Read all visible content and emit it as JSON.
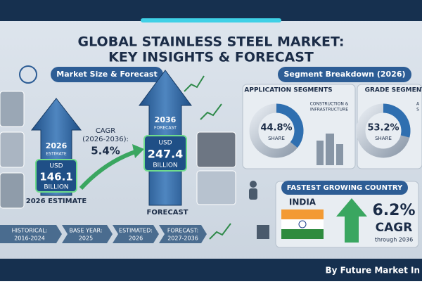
{
  "header": {
    "title_line1": "GLOBAL  STAINLESS STEEL MARKET:",
    "title_line2": "KEY INSIGHTS & FORECAST"
  },
  "market_size": {
    "heading": "Market Size & Forecast",
    "estimate": {
      "year": "2026",
      "tag": "ESTIMATE",
      "currency": "USD",
      "value": "146.1",
      "unit": "BILLION",
      "caption": "2026 ESTIMATE"
    },
    "cagr": {
      "label": "CAGR",
      "period": "(2026-2036):",
      "value": "5.4%"
    },
    "forecast": {
      "year": "2036",
      "tag": "FORECAST",
      "currency": "USD",
      "value": "247.4",
      "unit": "BILLION",
      "caption": "FORECAST"
    }
  },
  "timeline": [
    {
      "label": "HISTORICAL:",
      "years": "2016-2024"
    },
    {
      "label": "BASE YEAR:",
      "years": "2025"
    },
    {
      "label": "ESTIMATED:",
      "years": "2026"
    },
    {
      "label": "FORECAST:",
      "years": "2027-2036"
    }
  ],
  "segments": {
    "heading": "Segment Breakdown (2026)",
    "application": {
      "title": "APPLICATION SEGMENTS",
      "share": "44.8%",
      "share_label": "SHARE",
      "labels": [
        "CONSTRUCTION &",
        "INFRASTRUCTURE"
      ]
    },
    "grade": {
      "title": "GRADE SEGMENT",
      "share": "53.2%",
      "share_label": "SHARE",
      "labels": [
        "A",
        "S"
      ]
    }
  },
  "fastest_growing": {
    "title": "FASTEST GROWING COUNTRY",
    "country": "INDIA",
    "cagr": "6.2%",
    "cagr_label": "CAGR",
    "note": "through 2036"
  },
  "footer": {
    "credit": "By Future Market In"
  }
}
